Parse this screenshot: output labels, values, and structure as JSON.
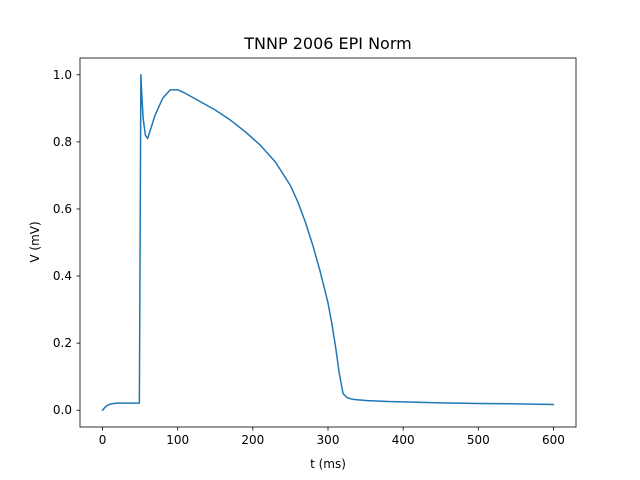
{
  "chart_data": {
    "type": "line",
    "title": "TNNP 2006 EPI Norm",
    "xlabel": "t (ms)",
    "ylabel": "V (mV)",
    "xlim": [
      -30,
      630
    ],
    "ylim": [
      -0.05,
      1.05
    ],
    "xticks": [
      0,
      100,
      200,
      300,
      400,
      500,
      600
    ],
    "yticks": [
      0.0,
      0.2,
      0.4,
      0.6,
      0.8,
      1.0
    ],
    "xtick_labels": [
      "0",
      "100",
      "200",
      "300",
      "400",
      "500",
      "600"
    ],
    "ytick_labels": [
      "0.0",
      "0.2",
      "0.4",
      "0.6",
      "0.8",
      "1.0"
    ],
    "grid": false,
    "legend": "none",
    "series": [
      {
        "color": "#1f77b4",
        "x": [
          0,
          3,
          6,
          10,
          15,
          20,
          30,
          40,
          49,
          50,
          51,
          52,
          54,
          57,
          60,
          65,
          70,
          80,
          90,
          100,
          110,
          130,
          150,
          170,
          190,
          210,
          230,
          250,
          260,
          270,
          280,
          290,
          300,
          305,
          310,
          315,
          320,
          325,
          330,
          335,
          340,
          345,
          350,
          360,
          380,
          400,
          450,
          500,
          550,
          600
        ],
        "y": [
          0.0,
          0.008,
          0.014,
          0.018,
          0.02,
          0.021,
          0.021,
          0.021,
          0.021,
          0.5,
          1.0,
          0.95,
          0.87,
          0.82,
          0.81,
          0.845,
          0.88,
          0.93,
          0.955,
          0.955,
          0.945,
          0.92,
          0.895,
          0.865,
          0.83,
          0.79,
          0.74,
          0.67,
          0.62,
          0.56,
          0.49,
          0.41,
          0.32,
          0.26,
          0.19,
          0.11,
          0.05,
          0.038,
          0.034,
          0.032,
          0.031,
          0.03,
          0.029,
          0.028,
          0.026,
          0.025,
          0.022,
          0.02,
          0.019,
          0.017
        ]
      }
    ]
  }
}
